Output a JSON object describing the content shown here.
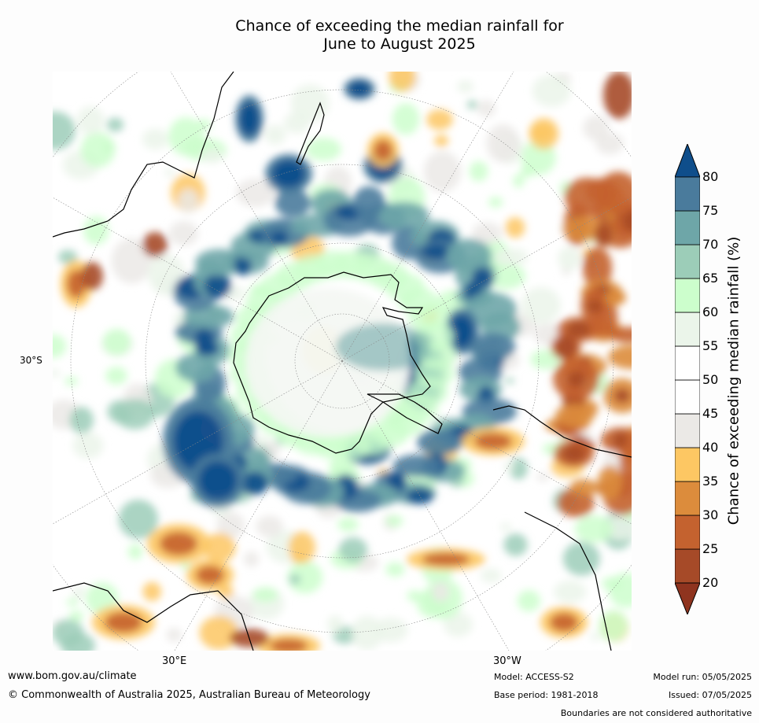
{
  "title_line1": "Chance of exceeding the median rainfall for",
  "title_line2": "June to August 2025",
  "axis_labels": {
    "lat": "30°S",
    "lon_left": "30°E",
    "lon_right": "30°W"
  },
  "colorbar": {
    "label": "Chance of exceeding median rainfall (%)",
    "ticks": [
      "20",
      "25",
      "30",
      "35",
      "40",
      "45",
      "50",
      "55",
      "60",
      "65",
      "70",
      "75",
      "80"
    ],
    "colors": [
      "#a64a28",
      "#c4622f",
      "#dc8c3c",
      "#fdc763",
      "#ebe9e6",
      "#ffffff",
      "#ffffff",
      "#ebf5ea",
      "#ccfecc",
      "#9ccdb8",
      "#6ea6a8",
      "#4a7b9c"
    ],
    "under_color": "#8f341f",
    "over_color": "#0f4e8b"
  },
  "footer": {
    "website": "www.bom.gov.au/climate",
    "copyright": "© Commonwealth of Australia 2025, Australian Bureau of Meteorology",
    "model": "Model: ACCESS-S2",
    "base_period": "Base period: 1981-2018",
    "model_run": "Model run: 05/05/2025",
    "issued": "Issued: 07/05/2025",
    "disclaimer": "Boundaries are not considered authoritative"
  }
}
